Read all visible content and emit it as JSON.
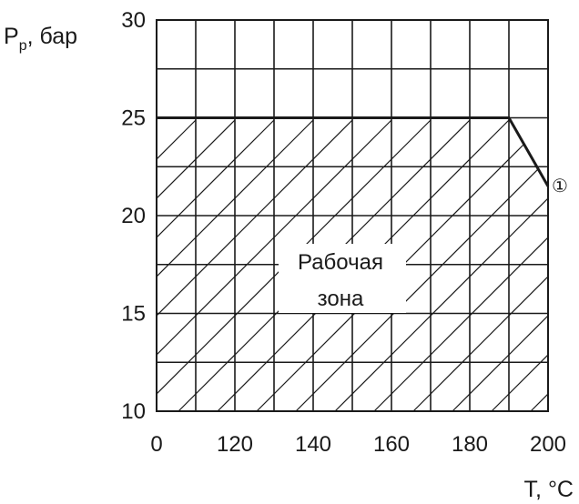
{
  "chart_data": {
    "type": "area",
    "title": "",
    "ylabel": "Pp, бар",
    "ylabel_main": "P",
    "ylabel_sub": "p",
    "ylabel_rest": ", бар",
    "xlabel": "T, °C",
    "x_ticks": [
      "0",
      "120",
      "140",
      "160",
      "180",
      "200"
    ],
    "y_ticks": [
      "30",
      "25",
      "20",
      "15",
      "10"
    ],
    "ylim": [
      10,
      30
    ],
    "x_columns": 10,
    "grid": true,
    "boundary": [
      {
        "x": 0,
        "y": 25
      },
      {
        "x": 180,
        "y": 25
      },
      {
        "x": 200,
        "y": 21.5
      }
    ],
    "zone_label": [
      "Рабочая",
      "зона"
    ],
    "curve_marker": "①",
    "colors": {
      "line": "#1a1a1a",
      "grid": "#1a1a1a",
      "background": "#ffffff"
    }
  }
}
